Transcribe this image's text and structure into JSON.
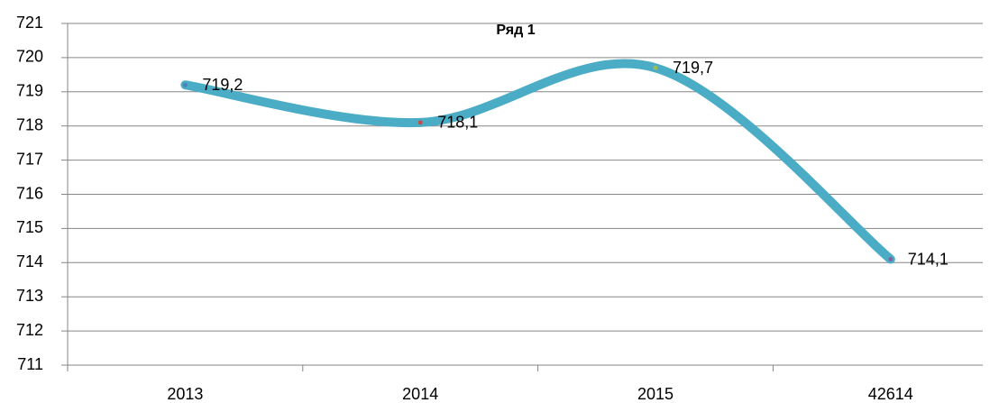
{
  "chart_data": {
    "type": "line",
    "title": "Ряд 1",
    "categories": [
      "2013",
      "2014",
      "2015",
      "42614"
    ],
    "series": [
      {
        "name": "Ряд 1",
        "color": "#4bacc6",
        "values": [
          719.2,
          718.1,
          719.7,
          714.1
        ],
        "value_labels": [
          "719,2",
          "718,1",
          "719,7",
          "714,1"
        ],
        "marker_colors": [
          "#4f81bd",
          "#c0504d",
          "#9bbb59",
          "#8064a2"
        ]
      }
    ],
    "ylim": [
      711,
      721
    ],
    "yticks": [
      711,
      712,
      713,
      714,
      715,
      716,
      717,
      718,
      719,
      720,
      721
    ],
    "grid": true,
    "smooth": true
  }
}
